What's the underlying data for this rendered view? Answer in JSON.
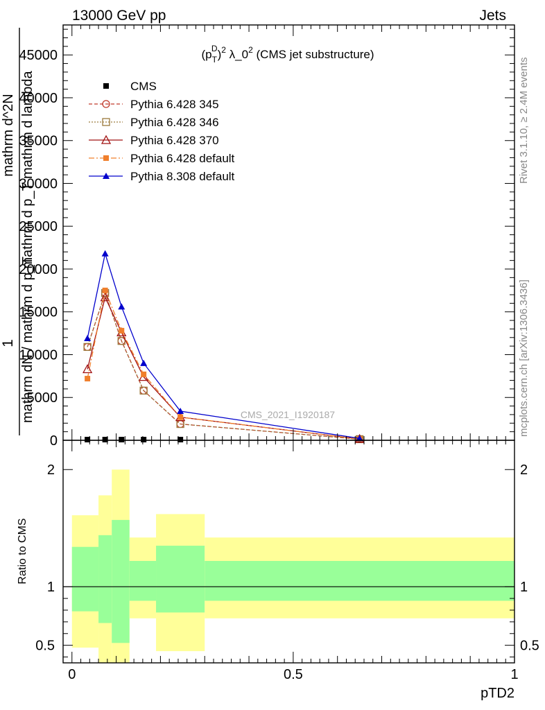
{
  "header": {
    "left": "13000 GeV pp",
    "right": "Jets"
  },
  "side_labels": {
    "rivet": "Rivet 3.1.10, ≥ 2.4M events",
    "mcplots": "mcplots.cern.ch [arXiv:1306.3436]"
  },
  "chart_data": [
    {
      "type": "line",
      "title": "(p_T^D)^2 λ_0^2 (CMS jet substructure)",
      "title_parts": {
        "pre": "(p",
        "sub1": "T",
        "sup1": "D",
        "mid": ")",
        "sup2": "2",
        "post1": " λ_0",
        "sup3": "2",
        "post2": " (CMS jet substructure)"
      },
      "watermark": "CMS_2021_I1920187",
      "ylabel_lines": [
        "1",
        "mathrm dN / mathrm d p_T",
        "mathrm d p_T mathrm d lambda",
        "mathrm d^2N"
      ],
      "ylim": [
        0,
        48500
      ],
      "yticks": [
        0,
        5000,
        10000,
        15000,
        20000,
        25000,
        30000,
        35000,
        40000,
        45000
      ],
      "ytick_labels": [
        "0",
        "5000",
        "10000",
        "15000",
        "20000",
        "25000",
        "30000",
        "35000",
        "40000",
        "45000"
      ],
      "xlim": [
        -0.02,
        1.0
      ],
      "x": [
        0.035,
        0.075,
        0.112,
        0.162,
        0.245,
        0.65
      ],
      "series": [
        {
          "name": "CMS",
          "color": "#000000",
          "marker": "square-filled",
          "dash": "none",
          "values": [
            0,
            0,
            0,
            0,
            0,
            0
          ]
        },
        {
          "name": "Pythia 6.428 345",
          "color": "#c0392b",
          "marker": "circle-open",
          "dash": "5,3",
          "values": [
            10900,
            17200,
            11600,
            5800,
            1900,
            130
          ]
        },
        {
          "name": "Pythia 6.428 346",
          "color": "#9c7a3c",
          "marker": "square-open",
          "dash": "2,2",
          "values": [
            10900,
            17200,
            11600,
            5800,
            1900,
            130
          ]
        },
        {
          "name": "Pythia 6.428 370",
          "color": "#a01010",
          "marker": "triangle-open",
          "dash": "none",
          "values": [
            8300,
            16700,
            12600,
            7400,
            2700,
            150
          ]
        },
        {
          "name": "Pythia 6.428 default",
          "color": "#f07f2c",
          "marker": "square-filled",
          "dash": "8,3,2,3",
          "values": [
            7200,
            17500,
            12800,
            7700,
            2700,
            150
          ]
        },
        {
          "name": "Pythia 8.308 default",
          "color": "#0000cc",
          "marker": "triangle-filled",
          "dash": "none",
          "values": [
            11900,
            21800,
            15600,
            9000,
            3400,
            220
          ]
        }
      ]
    },
    {
      "type": "area",
      "ylabel": "Ratio to CMS",
      "xlabel": "pTD2",
      "ylim": [
        0.35,
        2.25
      ],
      "yticks": [
        0.5,
        1,
        2
      ],
      "ytick_labels": [
        "0.5",
        "1",
        "2"
      ],
      "xticks": [
        0,
        0.5,
        1
      ],
      "xtick_labels": [
        "0",
        "0.5",
        "1"
      ],
      "bins": [
        {
          "lo": 0.0,
          "hi": 0.06,
          "yellow": [
            0.48,
            1.61
          ],
          "green": [
            0.79,
            1.34
          ]
        },
        {
          "lo": 0.06,
          "hi": 0.09,
          "yellow": [
            0.35,
            1.78
          ],
          "green": [
            0.69,
            1.44
          ]
        },
        {
          "lo": 0.09,
          "hi": 0.13,
          "yellow": [
            0.35,
            2.0
          ],
          "green": [
            0.52,
            1.57
          ]
        },
        {
          "lo": 0.13,
          "hi": 0.19,
          "yellow": [
            0.73,
            1.42
          ],
          "green": [
            0.88,
            1.22
          ]
        },
        {
          "lo": 0.19,
          "hi": 0.3,
          "yellow": [
            0.45,
            1.62
          ],
          "green": [
            0.78,
            1.35
          ]
        },
        {
          "lo": 0.3,
          "hi": 1.0,
          "yellow": [
            0.73,
            1.42
          ],
          "green": [
            0.88,
            1.22
          ]
        }
      ],
      "colors": {
        "yellow": "#ffff99",
        "green": "#99ff99"
      }
    }
  ]
}
